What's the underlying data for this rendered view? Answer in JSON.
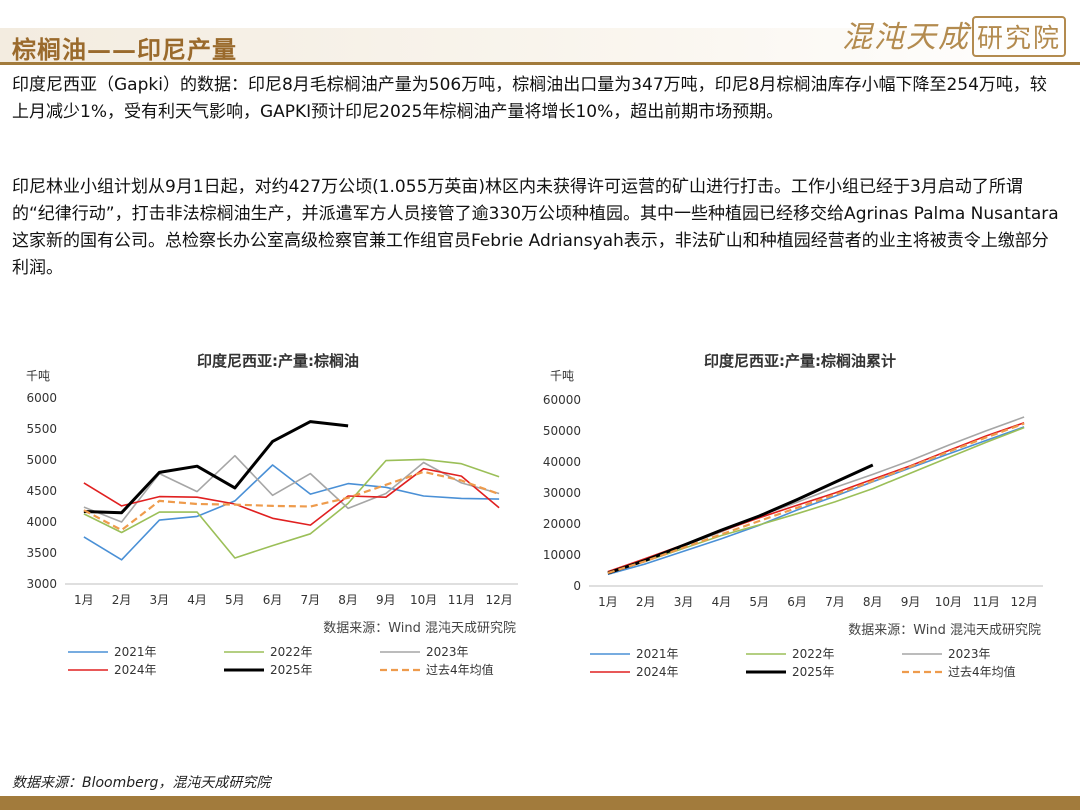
{
  "header": {
    "title": "棕榈油——印尼产量",
    "logo_main": "混沌天成",
    "logo_box": "研究院"
  },
  "paragraphs": [
    "印度尼西亚（Gapki）的数据：印尼8月毛棕榈油产量为506万吨，棕榈油出口量为347万吨，印尼8月棕榈油库存小幅下降至254万吨，较上月减少1%，受有利天气影响，GAPKI预计印尼2025年棕榈油产量将增长10%，超出前期市场预期。",
    "印尼林业小组计划从9月1日起，对约427万公顷(1.055万英亩)林区内未获得许可运营的矿山进行打击。工作小组已经于3月启动了所谓的“纪律行动”，打击非法棕榈油生产，并派遣军方人员接管了逾330万公顷种植园。其中一些种植园已经移交给Agrinas Palma Nusantara这家新的国有公司。总检察长办公室高级检察官兼工作组官员Febrie Adriansyah表示，非法矿山和种植园经营者的业主将被责令上缴部分利润。"
  ],
  "footer_source": "数据来源：Bloomberg，混沌天成研究院",
  "chart_data": [
    {
      "type": "line",
      "title": "印度尼西亚:产量:棕榈油",
      "unit": "千吨",
      "categories": [
        "1月",
        "2月",
        "3月",
        "4月",
        "5月",
        "6月",
        "7月",
        "8月",
        "9月",
        "10月",
        "11月",
        "12月"
      ],
      "ylim": [
        3000,
        6000
      ],
      "yticks": [
        3000,
        3500,
        4000,
        4500,
        5000,
        5500,
        6000
      ],
      "grid": false,
      "source": "数据来源：Wind  混沌天成研究院",
      "series": [
        {
          "name": "2021年",
          "color": "#4a90d6",
          "dash": "",
          "width": 1.6,
          "values": [
            3760,
            3390,
            4030,
            4090,
            4340,
            4920,
            4450,
            4620,
            4560,
            4420,
            4380,
            4370
          ]
        },
        {
          "name": "2022年",
          "color": "#9bbf58",
          "dash": "",
          "width": 1.6,
          "values": [
            4130,
            3830,
            4160,
            4160,
            3420,
            3620,
            3810,
            4300,
            4990,
            5010,
            4940,
            4730
          ]
        },
        {
          "name": "2023年",
          "color": "#a6a6a6",
          "dash": "",
          "width": 1.6,
          "values": [
            4240,
            4000,
            4780,
            4490,
            5070,
            4430,
            4780,
            4220,
            4460,
            4960,
            4630,
            4460
          ]
        },
        {
          "name": "2024年",
          "color": "#e02020",
          "dash": "",
          "width": 1.6,
          "values": [
            4630,
            4260,
            4410,
            4400,
            4290,
            4060,
            3950,
            4420,
            4400,
            4860,
            4740,
            4230
          ]
        },
        {
          "name": "2025年",
          "color": "#000000",
          "dash": "",
          "width": 3,
          "values": [
            4170,
            4150,
            4800,
            4900,
            4550,
            5300,
            5620,
            5550,
            null,
            null,
            null,
            null
          ]
        },
        {
          "name": "过去4年均值",
          "color": "#ee9b4c",
          "dash": "7,4",
          "width": 2.2,
          "values": [
            4190,
            3870,
            4340,
            4290,
            4280,
            4260,
            4250,
            4390,
            4600,
            4810,
            4670,
            4450
          ]
        }
      ]
    },
    {
      "type": "line",
      "title": "印度尼西亚:产量:棕榈油累计",
      "unit": "千吨",
      "categories": [
        "1月",
        "2月",
        "3月",
        "4月",
        "5月",
        "6月",
        "7月",
        "8月",
        "9月",
        "10月",
        "11月",
        "12月"
      ],
      "ylim": [
        0,
        60000
      ],
      "yticks": [
        0,
        10000,
        20000,
        30000,
        40000,
        50000,
        60000
      ],
      "grid": false,
      "source": "数据来源：Wind  混沌天成研究院",
      "series": [
        {
          "name": "2021年",
          "color": "#4a90d6",
          "dash": "",
          "width": 1.6,
          "values": [
            3760,
            7150,
            11180,
            15270,
            19610,
            24530,
            28980,
            33600,
            38160,
            42580,
            46960,
            51330
          ]
        },
        {
          "name": "2022年",
          "color": "#9bbf58",
          "dash": "",
          "width": 1.6,
          "values": [
            4130,
            7960,
            12120,
            16280,
            19700,
            23320,
            27130,
            31430,
            36420,
            41430,
            46370,
            51100
          ]
        },
        {
          "name": "2023年",
          "color": "#a6a6a6",
          "dash": "",
          "width": 1.6,
          "values": [
            4240,
            8240,
            13020,
            17510,
            22580,
            27010,
            31790,
            36010,
            40470,
            45430,
            50060,
            54520
          ]
        },
        {
          "name": "2024年",
          "color": "#e02020",
          "dash": "",
          "width": 1.6,
          "values": [
            4630,
            8890,
            13300,
            17700,
            21990,
            26050,
            30000,
            34420,
            38820,
            43680,
            48420,
            52650
          ]
        },
        {
          "name": "2025年",
          "color": "#000000",
          "dash": "",
          "width": 3,
          "values": [
            4170,
            8320,
            13120,
            18020,
            22570,
            27870,
            33490,
            39040,
            null,
            null,
            null,
            null
          ]
        },
        {
          "name": "过去4年均值",
          "color": "#ee9b4c",
          "dash": "7,4",
          "width": 2.2,
          "values": [
            4190,
            8060,
            12400,
            16690,
            20970,
            25230,
            29480,
            33870,
            38470,
            43280,
            47950,
            52400
          ]
        }
      ]
    }
  ]
}
